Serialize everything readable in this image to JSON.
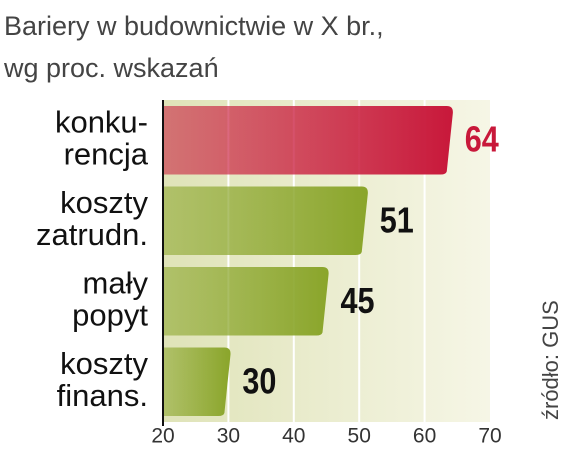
{
  "chart_data": {
    "type": "barh",
    "title": "Bariery w budownictwie w X br.,",
    "subtitle": "wg proc. wskazań",
    "source": "źródło: GUS",
    "categories": [
      [
        "konku-",
        "rencja"
      ],
      [
        "koszty",
        "zatrudn."
      ],
      [
        "mały",
        "popyt"
      ],
      [
        "koszty",
        "finans."
      ]
    ],
    "values": [
      64,
      51,
      45,
      30
    ],
    "colors": [
      "#c8183a",
      "#8aa52a",
      "#8aa52a",
      "#8aa52a"
    ],
    "value_label_colors": [
      "#c8183a",
      "#111111",
      "#111111",
      "#111111"
    ],
    "xlim": [
      20,
      70
    ],
    "xticks": [
      20,
      30,
      40,
      50,
      60,
      70
    ],
    "grid": true
  }
}
